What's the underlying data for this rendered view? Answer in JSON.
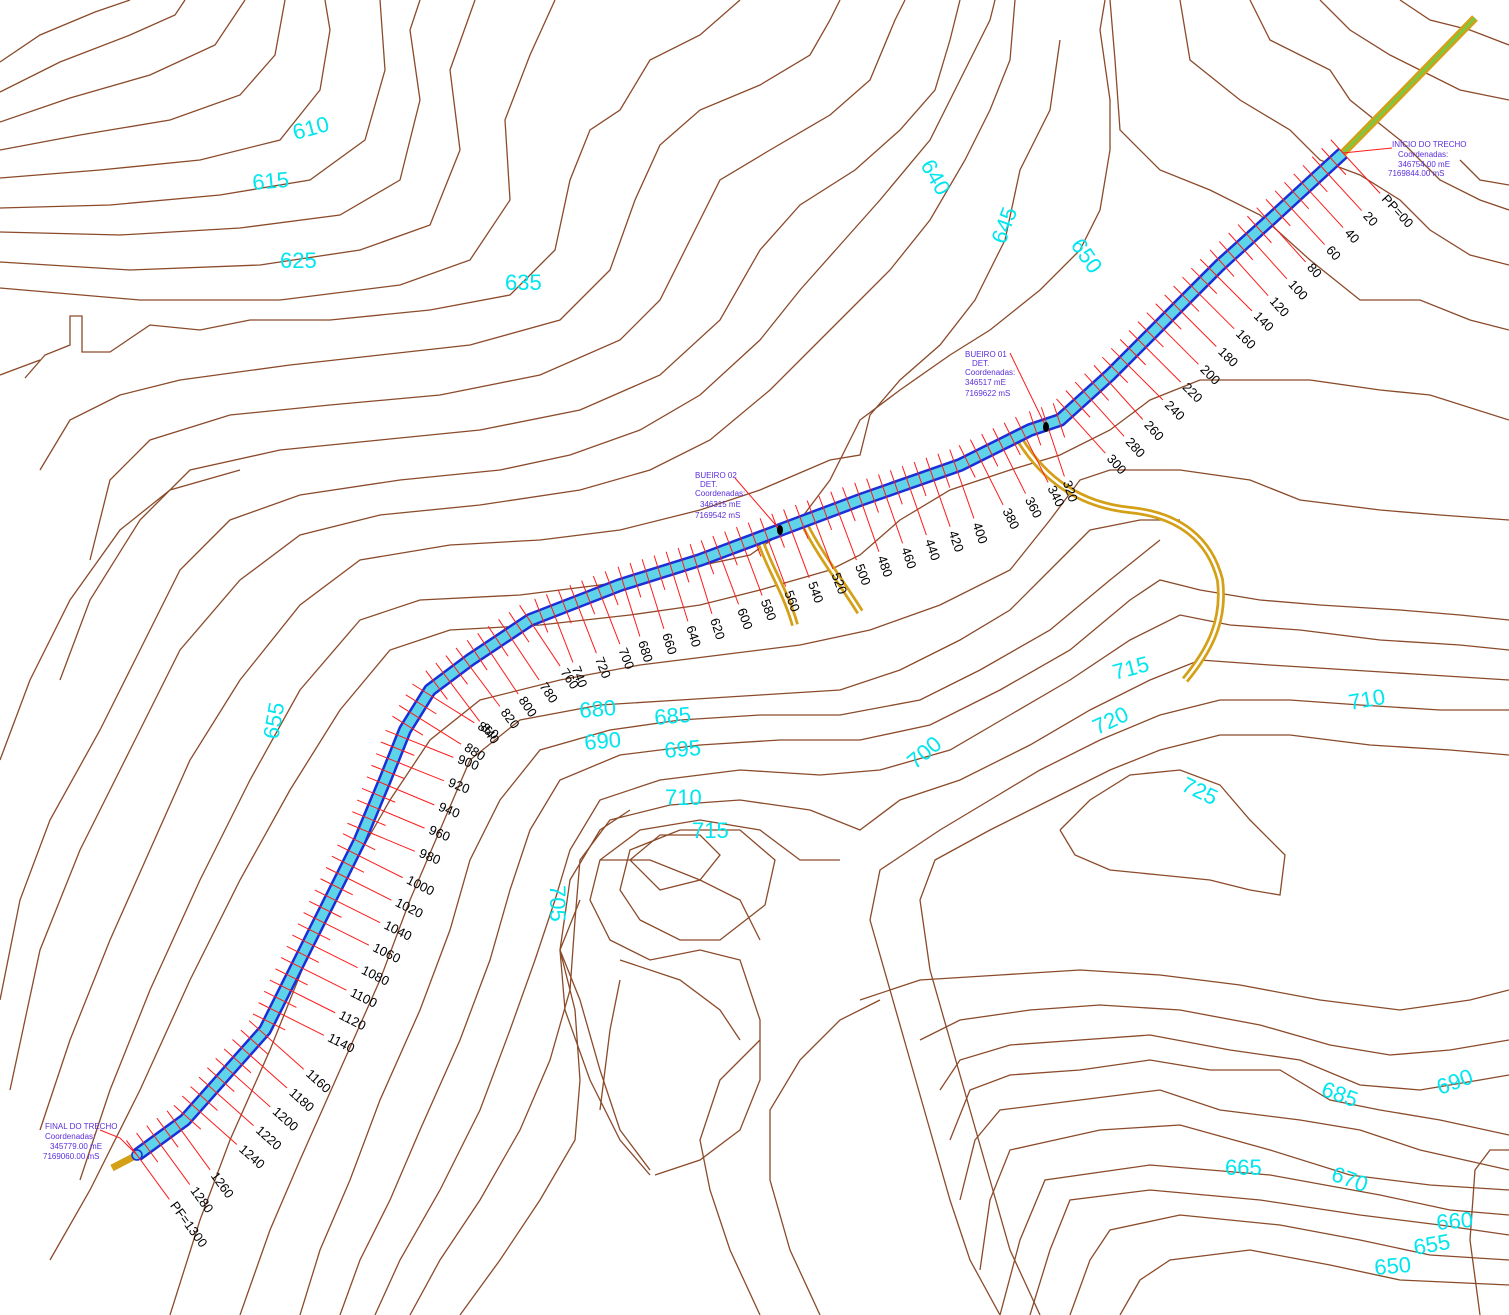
{
  "colors": {
    "contour": "#8b4a2a",
    "elevation_label": "#00e5ee",
    "road_edge": "#1a2fd8",
    "road_fill": "#5fd3e8",
    "tick": "#ff1a1a",
    "culvert": "#d4a017",
    "approach_green": "#7ac943",
    "annotation": "#5a2ddb"
  },
  "elevation_labels": [
    "610",
    "615",
    "625",
    "635",
    "640",
    "645",
    "650",
    "655",
    "680",
    "685",
    "690",
    "695",
    "700",
    "705",
    "710",
    "715",
    "720",
    "725",
    "715",
    "710",
    "685",
    "690",
    "665",
    "670",
    "660",
    "655",
    "650"
  ],
  "stations": [
    "PP=00",
    "20",
    "40",
    "60",
    "80",
    "100",
    "120",
    "140",
    "160",
    "180",
    "200",
    "220",
    "240",
    "260",
    "280",
    "300",
    "320",
    "340",
    "360",
    "380",
    "400",
    "420",
    "440",
    "460",
    "480",
    "500",
    "520",
    "540",
    "560",
    "580",
    "600",
    "620",
    "640",
    "660",
    "680",
    "700",
    "720",
    "740",
    "760",
    "780",
    "800",
    "820",
    "840",
    "860",
    "880",
    "900",
    "920",
    "940",
    "960",
    "980",
    "1000",
    "1020",
    "1040",
    "1060",
    "1080",
    "1100",
    "1120",
    "1140",
    "1160",
    "1180",
    "1200",
    "1220",
    "1240",
    "1260",
    "1280",
    "PF=1300"
  ],
  "annotations": {
    "start": {
      "title": "INÍCIO DO TRECHO",
      "line1": "Coordenadas:",
      "line2": "346754.00 mE",
      "line3": "7169844.00 mS"
    },
    "bueiro01": {
      "title": "BUEIRO 01",
      "line1": "DET.",
      "line2": "Coordenadas:",
      "line3": "346517 mE",
      "line4": "7169622 mS"
    },
    "bueiro02": {
      "title": "BUEIRO 02",
      "line1": "DET.",
      "line2": "Coordenadas:",
      "line3": "346315 mE",
      "line4": "7169542 mS"
    },
    "end": {
      "title": "FINAL DO TRECHO",
      "line1": "Coordenadas:",
      "line2": "345779.00 mE",
      "line3": "7169060.00 mS"
    }
  }
}
